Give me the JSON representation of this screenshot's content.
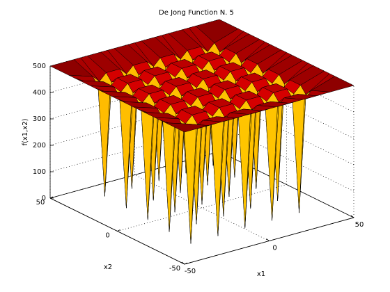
{
  "chart_data": {
    "type": "surface",
    "title": "De Jong Function N. 5",
    "xlabel": "x1",
    "ylabel": "x2",
    "zlabel": "f(x1,x2)",
    "xlim": [
      -50,
      50
    ],
    "ylim": [
      -50,
      50
    ],
    "zlim": [
      0,
      500
    ],
    "xticks": [
      -50,
      0,
      50
    ],
    "yticks": [
      -50,
      0,
      50
    ],
    "zticks": [
      0,
      100,
      200,
      300,
      400,
      500
    ],
    "grid": true,
    "colormap": "jet",
    "x": [
      -50,
      -36,
      -32,
      -28,
      -20,
      -16,
      -12,
      -4,
      0,
      4,
      12,
      16,
      20,
      28,
      32,
      36,
      50
    ],
    "y": [
      -50,
      -36,
      -32,
      -28,
      -20,
      -16,
      -12,
      -4,
      0,
      4,
      12,
      16,
      20,
      28,
      32,
      36,
      50
    ],
    "z": [
      [
        500,
        500,
        500,
        500,
        500,
        500,
        500,
        500,
        500,
        500,
        500,
        500,
        500,
        500,
        500,
        500,
        500
      ],
      [
        500,
        471,
        445,
        471,
        471,
        445,
        471,
        471,
        445,
        471,
        471,
        445,
        471,
        471,
        445,
        471,
        500
      ],
      [
        500,
        445,
        1,
        445,
        445,
        2,
        445,
        445,
        3,
        445,
        445,
        4,
        445,
        445,
        5,
        445,
        500
      ],
      [
        500,
        471,
        445,
        471,
        471,
        445,
        471,
        471,
        445,
        471,
        471,
        445,
        471,
        471,
        445,
        471,
        500
      ],
      [
        500,
        471,
        445,
        471,
        471,
        445,
        471,
        471,
        445,
        471,
        471,
        445,
        471,
        471,
        445,
        471,
        500
      ],
      [
        500,
        445,
        6,
        445,
        445,
        7,
        445,
        445,
        8,
        445,
        445,
        9,
        445,
        445,
        10,
        445,
        500
      ],
      [
        500,
        471,
        445,
        471,
        471,
        445,
        471,
        471,
        445,
        471,
        471,
        445,
        471,
        471,
        445,
        471,
        500
      ],
      [
        500,
        471,
        445,
        471,
        471,
        445,
        471,
        471,
        445,
        471,
        471,
        445,
        471,
        471,
        445,
        471,
        500
      ],
      [
        500,
        445,
        11,
        445,
        445,
        12,
        445,
        445,
        13,
        445,
        445,
        14,
        445,
        445,
        15,
        445,
        500
      ],
      [
        500,
        471,
        445,
        471,
        471,
        445,
        471,
        471,
        445,
        471,
        471,
        445,
        471,
        471,
        445,
        471,
        500
      ],
      [
        500,
        471,
        445,
        471,
        471,
        445,
        471,
        471,
        445,
        471,
        471,
        445,
        471,
        471,
        445,
        471,
        500
      ],
      [
        500,
        445,
        16,
        445,
        445,
        16,
        445,
        445,
        17,
        445,
        445,
        18,
        445,
        445,
        19,
        445,
        500
      ],
      [
        500,
        471,
        445,
        471,
        471,
        445,
        471,
        471,
        445,
        471,
        471,
        445,
        471,
        471,
        445,
        471,
        500
      ],
      [
        500,
        471,
        445,
        471,
        471,
        445,
        471,
        471,
        445,
        471,
        471,
        445,
        471,
        471,
        445,
        471,
        500
      ],
      [
        500,
        445,
        20,
        445,
        445,
        21,
        445,
        445,
        22,
        445,
        445,
        23,
        445,
        445,
        24,
        445,
        500
      ],
      [
        500,
        471,
        445,
        471,
        471,
        445,
        471,
        471,
        445,
        471,
        471,
        445,
        471,
        471,
        445,
        471,
        500
      ],
      [
        500,
        500,
        500,
        500,
        500,
        500,
        500,
        500,
        500,
        500,
        500,
        500,
        500,
        500,
        500,
        500,
        500
      ]
    ]
  }
}
